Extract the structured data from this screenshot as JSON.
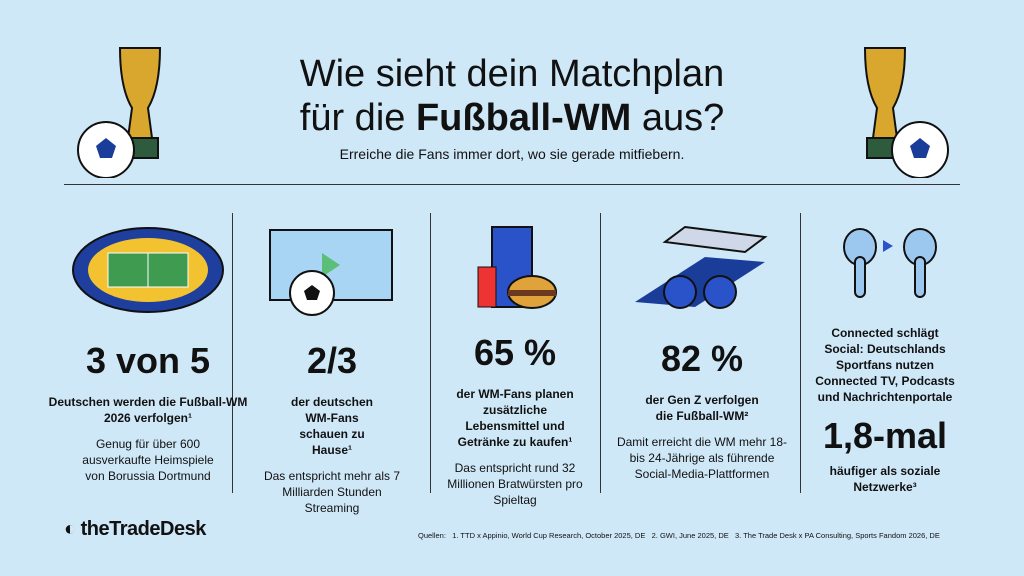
{
  "header": {
    "title_line1": "Wie sieht dein Matchplan",
    "title_line2_pre": "für die",
    "title_line2_bold": "Fußball-WM",
    "title_line2_post": "aus?",
    "subtitle": "Erreiche die Fans immer dort, wo sie gerade mitfiebern."
  },
  "columns": [
    {
      "stat": "3 von 5",
      "lead": "Deutschen werden die Fußball-WM 2026 verfolgen¹",
      "detail": "Genug für über 600 ausverkaufte Heimspiele von Borussia Dortmund"
    },
    {
      "stat": "2/3",
      "lead": "der deutschen WM-Fans schauen zu Hause¹",
      "detail": "Das entspricht mehr als 7 Milliarden Stunden Streaming"
    },
    {
      "stat": "65 %",
      "lead": "der WM-Fans planen zusätzliche Lebensmittel und Getränke zu kaufen¹",
      "detail": "Das entspricht rund 32 Millionen Bratwürsten pro Spieltag"
    },
    {
      "stat": "82 %",
      "lead": "der Gen Z verfolgen die Fußball-WM²",
      "detail": "Damit erreicht die WM mehr 18- bis 24-Jährige als führende Social-Media-Plattformen"
    },
    {
      "lead": "Connected schlägt Social: Deutschlands Sportfans nutzen Connected TV, Podcasts und Nachrichtenportale",
      "stat": "1,8-mal",
      "detail": "häufiger als soziale Netzwerke³"
    }
  ],
  "footer": {
    "logo": "theTradeDesk",
    "sources_label": "Quellen:",
    "sources": [
      "1. TTD x Appinio, World Cup Research, October 2025, DE",
      "2. GWI, June 2025, DE",
      "3. The Trade Desk x PA Consulting, Sports Fandom 2026, DE"
    ]
  }
}
